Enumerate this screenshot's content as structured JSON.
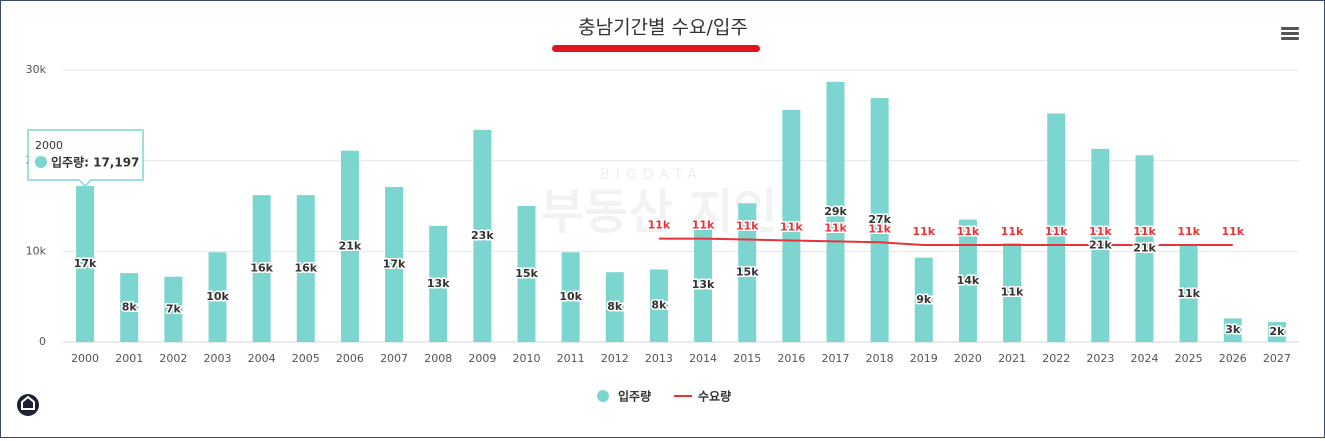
{
  "chart_data": {
    "type": "bar",
    "title": "충남기간별 수요/입주",
    "categories": [
      "2000",
      "2001",
      "2002",
      "2003",
      "2004",
      "2005",
      "2006",
      "2007",
      "2008",
      "2009",
      "2010",
      "2011",
      "2012",
      "2013",
      "2014",
      "2015",
      "2016",
      "2017",
      "2018",
      "2019",
      "2020",
      "2021",
      "2022",
      "2023",
      "2024",
      "2025",
      "2026",
      "2027"
    ],
    "series": [
      {
        "name": "입주량",
        "color": "#7dd5d0",
        "values": [
          17197,
          7600,
          7200,
          9900,
          16200,
          16200,
          21100,
          17100,
          12800,
          23400,
          15000,
          9900,
          7700,
          8000,
          12600,
          15300,
          25600,
          28700,
          26900,
          9300,
          13500,
          10900,
          25200,
          21300,
          20600,
          10600,
          2600,
          2200
        ],
        "value_labels": [
          "17k",
          "8k",
          "7k",
          "10k",
          "16k",
          "16k",
          "21k",
          "17k",
          "13k",
          "23k",
          "15k",
          "10k",
          "8k",
          "8k",
          "13k",
          "15k",
          null,
          "29k",
          "27k",
          "9k",
          "14k",
          "11k",
          null,
          "21k",
          "21k",
          "11k",
          "3k",
          "2k"
        ]
      },
      {
        "name": "수요량",
        "type": "line",
        "color": "#e8333a",
        "values": [
          null,
          null,
          null,
          null,
          null,
          null,
          null,
          null,
          null,
          null,
          null,
          null,
          null,
          11400,
          11400,
          11300,
          11200,
          11100,
          11000,
          10700,
          10700,
          10700,
          10700,
          10700,
          10700,
          10700,
          10700,
          null
        ],
        "value_labels": [
          null,
          null,
          null,
          null,
          null,
          null,
          null,
          null,
          null,
          null,
          null,
          null,
          null,
          "11k",
          "11k",
          "11k",
          "11k",
          "11k",
          "11k",
          "11k",
          "11k",
          "11k",
          "11k",
          "11k",
          "11k",
          "11k",
          "11k",
          null
        ]
      }
    ],
    "ylim": [
      0,
      30000
    ],
    "yticks": [
      {
        "value": 0,
        "label": "0"
      },
      {
        "value": 10000,
        "label": "10k"
      },
      {
        "value": 20000,
        "label": "20k"
      },
      {
        "value": 30000,
        "label": "30k"
      }
    ],
    "grid": true,
    "legend": "bottom",
    "tooltip": {
      "title": "2000",
      "label": "입주량: 17,197"
    },
    "watermark": {
      "top": "BIGDATA",
      "main": "부동산 지인"
    }
  }
}
